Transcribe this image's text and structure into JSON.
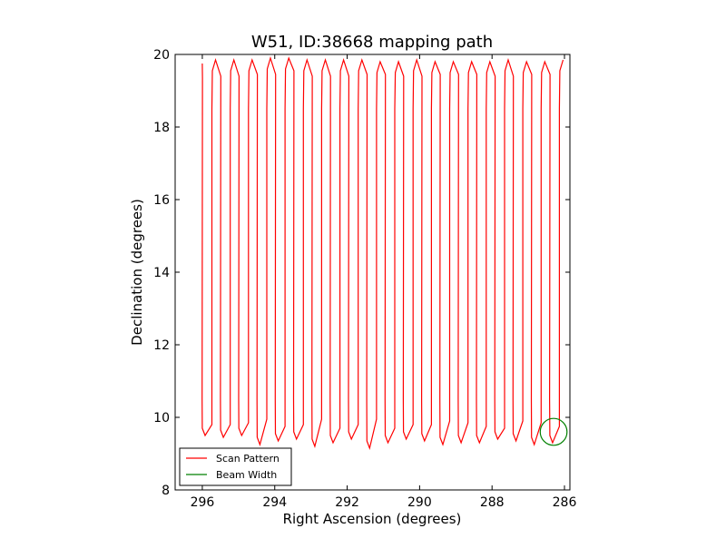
{
  "chart_data": {
    "type": "line",
    "title": "W51, ID:38668 mapping path",
    "xlabel": "Right Ascension (degrees)",
    "ylabel": "Declination (degrees)",
    "xlim": [
      296.75,
      285.85
    ],
    "ylim": [
      8,
      20
    ],
    "x_inverted": true,
    "xticks": [
      296,
      294,
      292,
      290,
      288,
      286
    ],
    "yticks": [
      8,
      10,
      12,
      14,
      16,
      18,
      20
    ],
    "grid": false,
    "legend_position": "lower-left",
    "colors": {
      "scan": "#ff0000",
      "beam": "#008000"
    },
    "series": [
      {
        "name": "Scan Pattern",
        "kind": "line",
        "scan": {
          "start_ra": 296.0,
          "end_ra": 285.9,
          "leg_count": 40,
          "dec_low": [
            9.5,
            9.3,
            9.45,
            9.3,
            9.5,
            9.35,
            9.25,
            9.45,
            9.35,
            9.25,
            9.4,
            9.3,
            9.2,
            9.45,
            9.3,
            9.2,
            9.4,
            9.3,
            9.15,
            9.45,
            9.3,
            9.2,
            9.4,
            9.3,
            9.35,
            9.3,
            9.25,
            9.4,
            9.3,
            9.35,
            9.3,
            9.25,
            9.4,
            9.2,
            9.35,
            9.4,
            9.25,
            9.35,
            9.3,
            9.25
          ],
          "dec_high": [
            19.75,
            19.85,
            19.8,
            19.85,
            19.8,
            19.85,
            19.85,
            19.9,
            19.85,
            19.9,
            19.95,
            19.85,
            19.8,
            19.85,
            19.8,
            19.85,
            19.8,
            19.85,
            19.85,
            19.8,
            19.85,
            19.8,
            19.8,
            19.85,
            19.8,
            19.8,
            19.85,
            19.8,
            19.85,
            19.8,
            19.85,
            19.8,
            19.8,
            19.85,
            19.8,
            19.8,
            19.85,
            19.8,
            19.85,
            19.85
          ]
        }
      },
      {
        "name": "Beam Width",
        "kind": "circle",
        "center_ra": 286.3,
        "center_dec": 9.6,
        "radius_deg": 0.37
      }
    ]
  }
}
